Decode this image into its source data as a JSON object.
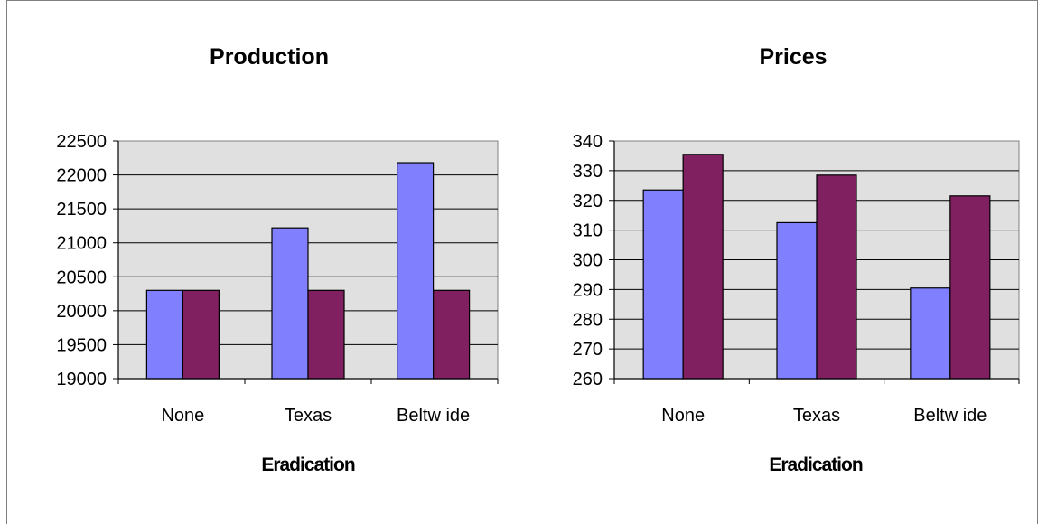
{
  "chart_data": [
    {
      "type": "bar",
      "title": "Production",
      "xlabel": "Eradication",
      "ylabel": "",
      "categories": [
        "None",
        "Texas",
        "Beltw ide"
      ],
      "series": [
        {
          "values": [
            20300,
            21220,
            22180
          ]
        },
        {
          "values": [
            20300,
            20300,
            20300
          ]
        }
      ],
      "ylim": [
        19000,
        22500
      ],
      "yticks": [
        "19000",
        "19500",
        "20000",
        "20500",
        "21000",
        "21500",
        "22000",
        "22500"
      ],
      "grid": true
    },
    {
      "type": "bar",
      "title": "Prices",
      "xlabel": "Eradication",
      "ylabel": "",
      "categories": [
        "None",
        "Texas",
        "Beltw ide"
      ],
      "series": [
        {
          "values": [
            323.5,
            312.5,
            290.5
          ]
        },
        {
          "values": [
            335.5,
            328.5,
            321.5
          ]
        }
      ],
      "ylim": [
        260,
        340
      ],
      "yticks": [
        "260",
        "270",
        "280",
        "290",
        "300",
        "310",
        "320",
        "330",
        "340"
      ],
      "grid": true
    }
  ],
  "colors": {
    "series1": "#8080FF",
    "series2": "#802060",
    "plot_bg": "#E0E0E0",
    "gridline": "#000000"
  }
}
